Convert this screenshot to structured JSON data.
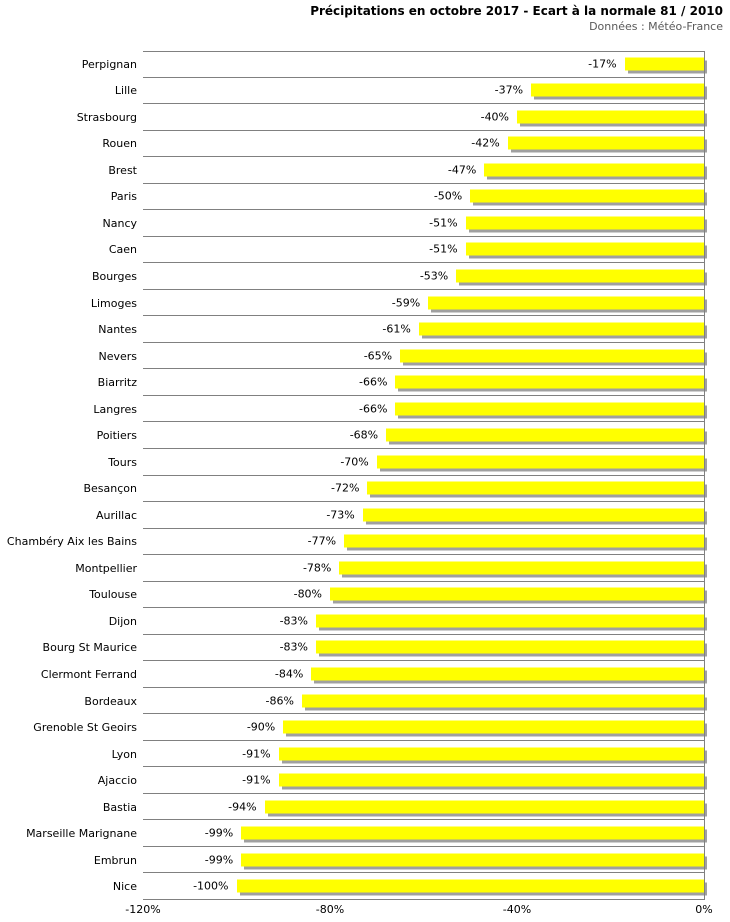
{
  "header": {
    "title": "Précipitations en octobre 2017 - Ecart à la normale 81 / 2010",
    "subtitle": "Données : Météo-France"
  },
  "chart_data": {
    "type": "bar",
    "orientation": "horizontal",
    "title": "Précipitations en octobre 2017 - Ecart à la normale 81 / 2010",
    "subtitle": "Données : Météo-France",
    "categories": [
      "Perpignan",
      "Lille",
      "Strasbourg",
      "Rouen",
      "Brest",
      "Paris",
      "Nancy",
      "Caen",
      "Bourges",
      "Limoges",
      "Nantes",
      "Nevers",
      "Biarritz",
      "Langres",
      "Poitiers",
      "Tours",
      "Besançon",
      "Aurillac",
      "Chambéry Aix les Bains",
      "Montpellier",
      "Toulouse",
      "Dijon",
      "Bourg St Maurice",
      "Clermont Ferrand",
      "Bordeaux",
      "Grenoble St Geoirs",
      "Lyon",
      "Ajaccio",
      "Bastia",
      "Marseille Marignane",
      "Embrun",
      "Nice"
    ],
    "values": [
      -17,
      -37,
      -40,
      -42,
      -47,
      -50,
      -51,
      -51,
      -53,
      -59,
      -61,
      -65,
      -66,
      -66,
      -68,
      -70,
      -72,
      -73,
      -77,
      -78,
      -80,
      -83,
      -83,
      -84,
      -86,
      -90,
      -91,
      -91,
      -94,
      -99,
      -99,
      -100
    ],
    "value_labels": [
      "-17%",
      "-37%",
      "-40%",
      "-42%",
      "-47%",
      "-50%",
      "-51%",
      "-51%",
      "-53%",
      "-59%",
      "-61%",
      "-65%",
      "-66%",
      "-66%",
      "-68%",
      "-70%",
      "-72%",
      "-73%",
      "-77%",
      "-78%",
      "-80%",
      "-83%",
      "-83%",
      "-84%",
      "-86%",
      "-90%",
      "-91%",
      "-91%",
      "-94%",
      "-99%",
      "-99%",
      "-100%"
    ],
    "xlabel": "",
    "ylabel": "",
    "xlim": [
      -120,
      0
    ],
    "x_ticks": [
      "-120%",
      "-80%",
      "-40%",
      "0%"
    ],
    "grid": "horizontal-row-separators",
    "legend": false,
    "bar_color": "#ffff00",
    "shadow_color": "#a0a0a0",
    "gridline_color": "#808080",
    "value_label_color": "#000000",
    "subtitle_color": "#595959"
  }
}
